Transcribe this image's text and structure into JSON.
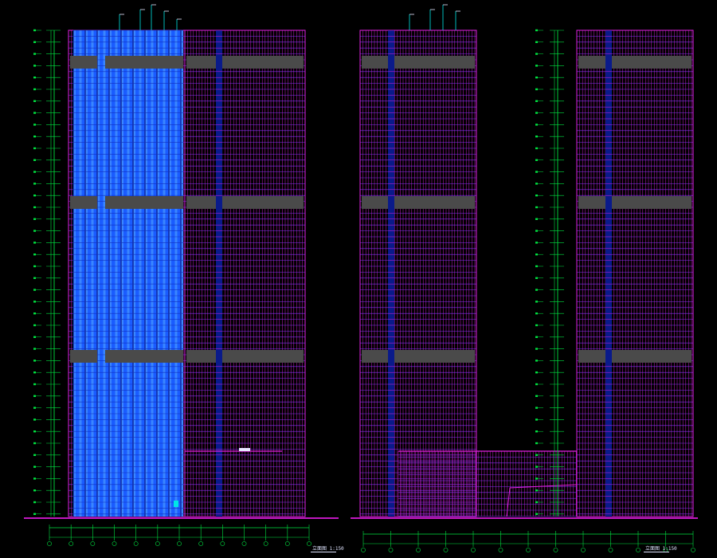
{
  "drawing": {
    "type": "CAD building elevations",
    "background": "#000000",
    "colors": {
      "grid_magenta": "#e020e0",
      "glass_blue": "#1a5cff",
      "glass_blue_light": "#3a86ff",
      "mullion_dark": "#0a1a8a",
      "band_gray": "#4a4a4a",
      "dim_green": "#00e040",
      "cyan": "#00e6e6",
      "ground": "#ff20ff",
      "text_white": "#e8e8ff",
      "floor_purple": "#7a35ff"
    },
    "elevations": [
      {
        "id": "elevation-left",
        "title": "立面图 1:150"
      },
      {
        "id": "elevation-right",
        "title": "立面图 1:150"
      }
    ]
  }
}
